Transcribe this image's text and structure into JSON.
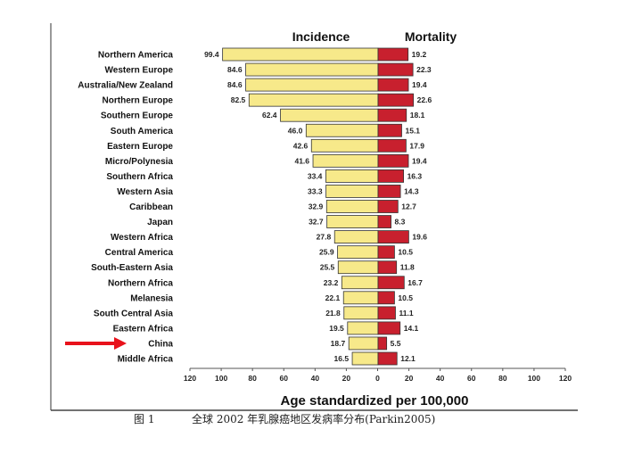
{
  "chart_data": {
    "type": "bar",
    "orientation": "horizontal-butterfly",
    "categories": [
      "Northern America",
      "Western Europe",
      "Australia/New Zealand",
      "Northern Europe",
      "Southern Europe",
      "South America",
      "Eastern Europe",
      "Micro/Polynesia",
      "Southern Africa",
      "Western Asia",
      "Caribbean",
      "Japan",
      "Western Africa",
      "Central America",
      "South-Eastern Asia",
      "Northern Africa",
      "Melanesia",
      "South Central Asia",
      "Eastern Africa",
      "China",
      "Middle Africa"
    ],
    "series": [
      {
        "name": "Incidence",
        "color": "#f7e98a",
        "values": [
          99.4,
          84.6,
          84.6,
          82.5,
          62.4,
          46.0,
          42.6,
          41.6,
          33.4,
          33.3,
          32.9,
          32.7,
          27.8,
          25.9,
          25.5,
          23.2,
          22.1,
          21.8,
          19.5,
          18.7,
          16.5
        ]
      },
      {
        "name": "Mortality",
        "color": "#c8202e",
        "values": [
          19.2,
          22.3,
          19.4,
          22.6,
          18.1,
          15.1,
          17.9,
          19.4,
          16.3,
          14.3,
          12.7,
          8.3,
          19.6,
          10.5,
          11.8,
          16.7,
          10.5,
          11.1,
          14.1,
          5.5,
          12.1
        ]
      }
    ],
    "xlabel": "Age standardized per 100,000",
    "xlim": [
      -120,
      120
    ],
    "ticks": [
      "120",
      "100",
      "80",
      "60",
      "40",
      "20",
      "0",
      "20",
      "40",
      "60",
      "80",
      "100",
      "120"
    ],
    "highlight": "China",
    "highlight_color": "#e8121b"
  },
  "caption": {
    "fig": "图 1",
    "text": "全球 2002 年乳腺癌地区发病率分布(Parkin2005)"
  }
}
